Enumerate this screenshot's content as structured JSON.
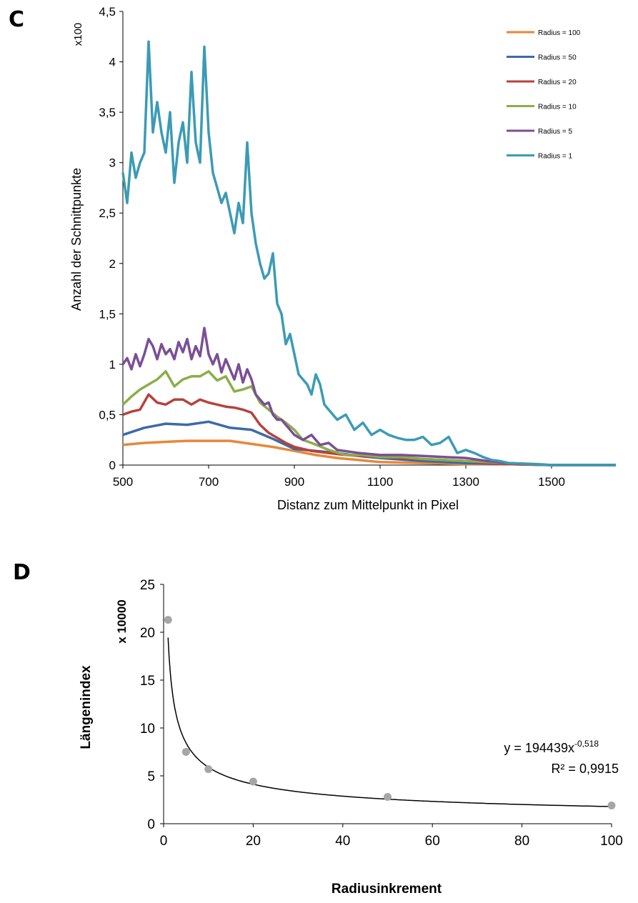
{
  "panels": {
    "c_letter": "C",
    "d_letter": "D"
  },
  "chart_data": [
    {
      "type": "line",
      "multiplier_label": "x100",
      "ylabel": "Anzahl der Schnittpunkte",
      "xlabel": "Distanz zum Mittelpunkt in Pixel",
      "xlim": [
        500,
        1650
      ],
      "ylim": [
        0,
        4.5
      ],
      "x_ticks": [
        500,
        700,
        900,
        1100,
        1300,
        1500
      ],
      "x_tick_labels": [
        "500",
        "700",
        "900",
        "1100",
        "1300",
        "1500"
      ],
      "y_ticks": [
        0,
        0.5,
        1,
        1.5,
        2,
        2.5,
        3,
        3.5,
        4,
        4.5
      ],
      "y_tick_labels": [
        "0",
        "0,5",
        "1",
        "1,5",
        "2",
        "2,5",
        "3",
        "3,5",
        "4",
        "4,5"
      ],
      "grid": false,
      "legend_position": "top-right",
      "series": [
        {
          "name": "Radius = 100",
          "color": "#E8873A",
          "x": [
            500,
            550,
            600,
            650,
            700,
            750,
            800,
            850,
            900,
            950,
            1000,
            1050,
            1100,
            1200,
            1300,
            1400,
            1500,
            1650
          ],
          "y": [
            0.2,
            0.22,
            0.23,
            0.24,
            0.24,
            0.24,
            0.21,
            0.18,
            0.14,
            0.1,
            0.07,
            0.05,
            0.03,
            0.02,
            0.01,
            0.01,
            0,
            0
          ]
        },
        {
          "name": "Radius = 50",
          "color": "#3C6AA8",
          "x": [
            500,
            550,
            600,
            650,
            700,
            750,
            800,
            850,
            900,
            950,
            1000,
            1050,
            1100,
            1200,
            1300,
            1400,
            1500,
            1650
          ],
          "y": [
            0.3,
            0.37,
            0.41,
            0.4,
            0.43,
            0.37,
            0.35,
            0.26,
            0.16,
            0.14,
            0.12,
            0.09,
            0.07,
            0.04,
            0.02,
            0.01,
            0,
            0
          ]
        },
        {
          "name": "Radius = 20",
          "color": "#B8413C",
          "x": [
            500,
            520,
            540,
            560,
            580,
            600,
            620,
            640,
            660,
            680,
            700,
            720,
            740,
            760,
            780,
            800,
            820,
            840,
            860,
            880,
            900,
            940,
            980,
            1020,
            1060,
            1100,
            1150,
            1200,
            1250,
            1300,
            1350,
            1400,
            1500,
            1650
          ],
          "y": [
            0.5,
            0.53,
            0.55,
            0.7,
            0.62,
            0.6,
            0.65,
            0.65,
            0.6,
            0.65,
            0.62,
            0.6,
            0.58,
            0.57,
            0.55,
            0.52,
            0.4,
            0.32,
            0.27,
            0.22,
            0.18,
            0.14,
            0.12,
            0.1,
            0.09,
            0.08,
            0.07,
            0.06,
            0.05,
            0.04,
            0.02,
            0.01,
            0,
            0
          ]
        },
        {
          "name": "Radius = 10",
          "color": "#8BAE48",
          "x": [
            500,
            520,
            540,
            560,
            580,
            600,
            620,
            640,
            660,
            680,
            700,
            720,
            740,
            760,
            780,
            800,
            820,
            840,
            860,
            880,
            900,
            920,
            940,
            980,
            1020,
            1060,
            1100,
            1150,
            1200,
            1250,
            1300,
            1350,
            1400,
            1470,
            1500,
            1650
          ],
          "y": [
            0.6,
            0.68,
            0.75,
            0.8,
            0.85,
            0.93,
            0.78,
            0.85,
            0.88,
            0.88,
            0.93,
            0.84,
            0.88,
            0.73,
            0.75,
            0.78,
            0.62,
            0.55,
            0.48,
            0.42,
            0.35,
            0.25,
            0.22,
            0.15,
            0.1,
            0.1,
            0.08,
            0.08,
            0.06,
            0.05,
            0.04,
            0.03,
            0.02,
            0.01,
            0,
            0
          ]
        },
        {
          "name": "Radius = 5",
          "color": "#7A4F96",
          "x": [
            500,
            510,
            520,
            530,
            540,
            550,
            560,
            570,
            580,
            590,
            600,
            610,
            620,
            630,
            640,
            650,
            660,
            670,
            680,
            690,
            700,
            710,
            720,
            730,
            740,
            750,
            760,
            770,
            780,
            790,
            800,
            810,
            820,
            830,
            840,
            850,
            860,
            870,
            880,
            890,
            900,
            920,
            940,
            960,
            980,
            1000,
            1050,
            1100,
            1150,
            1200,
            1250,
            1300,
            1350,
            1400,
            1500,
            1650
          ],
          "y": [
            1.0,
            1.06,
            0.95,
            1.1,
            0.98,
            1.1,
            1.25,
            1.18,
            1.05,
            1.2,
            1.1,
            1.15,
            1.05,
            1.22,
            1.12,
            1.25,
            1.05,
            1.18,
            1.08,
            1.36,
            1.1,
            1.0,
            1.1,
            0.92,
            1.05,
            0.95,
            0.85,
            1.0,
            0.82,
            0.95,
            0.85,
            0.7,
            0.65,
            0.6,
            0.62,
            0.5,
            0.45,
            0.45,
            0.4,
            0.35,
            0.3,
            0.25,
            0.3,
            0.2,
            0.22,
            0.15,
            0.12,
            0.1,
            0.1,
            0.09,
            0.08,
            0.07,
            0.04,
            0.02,
            0,
            0
          ]
        },
        {
          "name": "Radius = 1",
          "color": "#3B9BB5",
          "x": [
            500,
            510,
            520,
            530,
            540,
            550,
            560,
            570,
            580,
            590,
            600,
            610,
            620,
            630,
            640,
            650,
            660,
            670,
            680,
            690,
            700,
            710,
            720,
            730,
            740,
            750,
            760,
            770,
            780,
            790,
            800,
            810,
            820,
            830,
            840,
            850,
            860,
            870,
            880,
            890,
            900,
            910,
            920,
            930,
            940,
            950,
            960,
            970,
            980,
            990,
            1000,
            1020,
            1040,
            1060,
            1080,
            1100,
            1120,
            1140,
            1160,
            1180,
            1200,
            1220,
            1240,
            1260,
            1280,
            1300,
            1320,
            1340,
            1360,
            1380,
            1400,
            1450,
            1500,
            1650
          ],
          "y": [
            2.9,
            2.6,
            3.1,
            2.85,
            3.0,
            3.1,
            4.2,
            3.3,
            3.6,
            3.3,
            3.1,
            3.5,
            2.8,
            3.2,
            3.4,
            3.0,
            3.9,
            3.2,
            3.0,
            4.15,
            3.3,
            2.9,
            2.75,
            2.6,
            2.7,
            2.5,
            2.3,
            2.6,
            2.4,
            3.2,
            2.5,
            2.2,
            2.0,
            1.85,
            1.9,
            2.1,
            1.6,
            1.5,
            1.2,
            1.3,
            1.1,
            0.9,
            0.85,
            0.8,
            0.7,
            0.9,
            0.8,
            0.6,
            0.55,
            0.5,
            0.45,
            0.5,
            0.35,
            0.42,
            0.3,
            0.35,
            0.3,
            0.27,
            0.25,
            0.25,
            0.28,
            0.2,
            0.22,
            0.28,
            0.12,
            0.15,
            0.12,
            0.08,
            0.05,
            0.04,
            0.02,
            0.01,
            0,
            0
          ]
        }
      ]
    },
    {
      "type": "scatter",
      "multiplier_label": "x 10000",
      "ylabel": "Längenindex",
      "xlabel": "Radiusinkrement",
      "xlim": [
        0,
        100
      ],
      "ylim": [
        0,
        25
      ],
      "x_ticks": [
        0,
        20,
        40,
        60,
        80,
        100
      ],
      "x_tick_labels": [
        "0",
        "20",
        "40",
        "60",
        "80",
        "100"
      ],
      "y_ticks": [
        0,
        5,
        10,
        15,
        20,
        25
      ],
      "y_tick_labels": [
        "0",
        "5",
        "10",
        "15",
        "20",
        "25"
      ],
      "grid": false,
      "series": [
        {
          "color": "#A6A6A6",
          "x": [
            1,
            5,
            10,
            20,
            50,
            100
          ],
          "y": [
            21.3,
            7.5,
            5.7,
            4.4,
            2.8,
            1.9
          ]
        }
      ],
      "trendline": {
        "type": "power",
        "coefficient": 19.4439,
        "exponent": -0.518,
        "x_from": 1,
        "x_to": 100,
        "color": "#000000"
      },
      "equation_text": "y = 194439x",
      "equation_exponent": "-0,518",
      "r2_text": "R² = 0,9915"
    }
  ]
}
